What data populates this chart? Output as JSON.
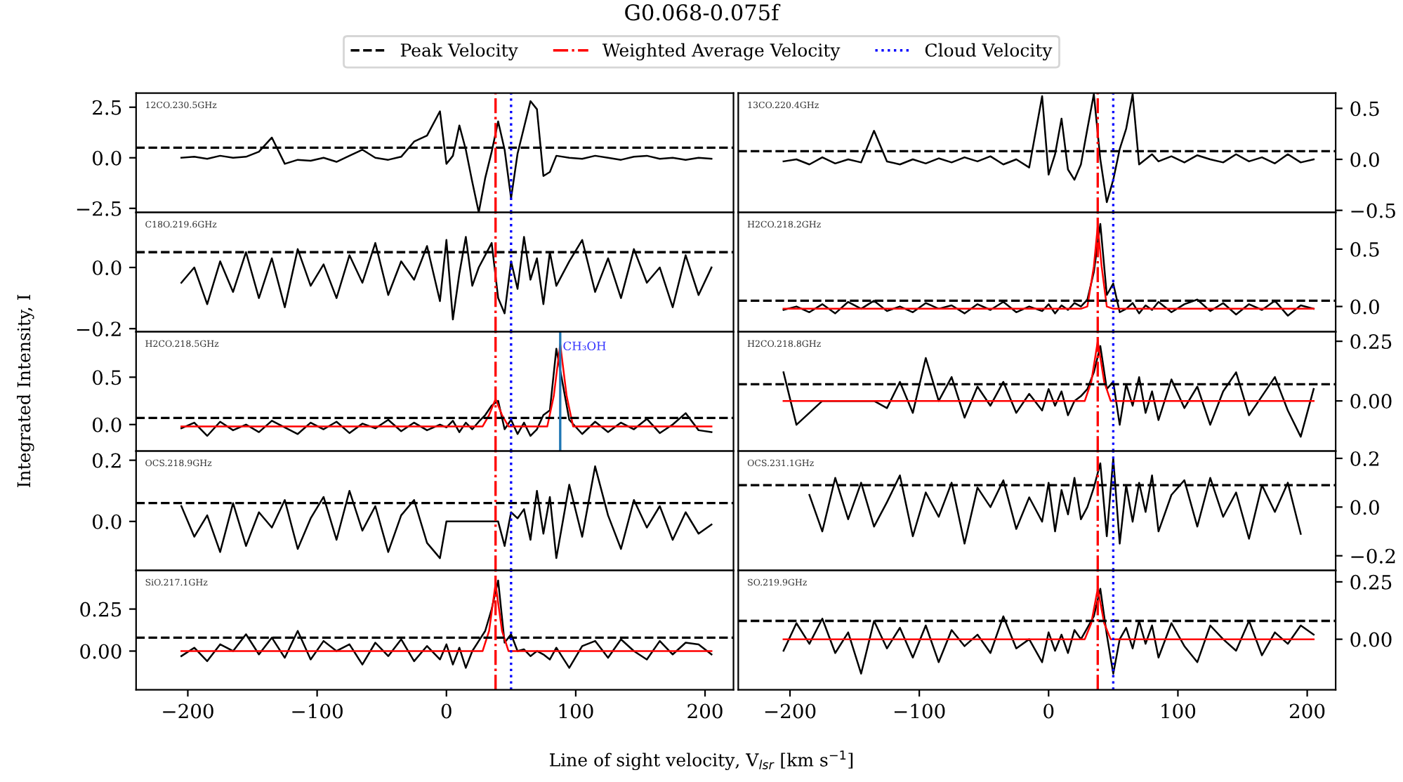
{
  "chart_data": [
    {
      "type": "line",
      "title": "G0.068-0.075f",
      "xlabel": "Line of sight velocity, V$_{lsr}$ [km s$^{−1}$]",
      "ylabel": "Integrated Intensity, I",
      "legend": "top",
      "annotations": [
        "12CO.230.5GHz"
      ],
      "tick_labels": "y",
      "xlim": [
        -240,
        222
      ],
      "ylim": [
        -2.7,
        3.2
      ],
      "xticks": [
        {
          "value": -200,
          "label": null
        },
        {
          "value": -100,
          "label": null
        },
        {
          "value": 0,
          "label": null
        },
        {
          "value": 100,
          "label": null
        },
        {
          "value": 200,
          "label": null
        }
      ],
      "yticks": [
        {
          "value": -2.5,
          "label": "−2.5"
        },
        {
          "value": 0.0,
          "label": "0.0"
        },
        {
          "value": 2.5,
          "label": "2.5"
        }
      ],
      "x": [
        -205,
        -195,
        -185,
        -175,
        -165,
        -155,
        -145,
        -135,
        -125,
        -115,
        -105,
        -95,
        -85,
        -75,
        -65,
        -55,
        -45,
        -35,
        -25,
        -15,
        -5,
        0,
        5,
        10,
        15,
        20,
        25,
        30,
        35,
        40,
        45,
        50,
        55,
        60,
        65,
        70,
        75,
        80,
        85,
        95,
        105,
        115,
        125,
        135,
        145,
        155,
        165,
        175,
        185,
        195,
        205
      ],
      "series": [
        {
          "color": "#000000",
          "values": [
            0.0,
            0.05,
            -0.05,
            0.1,
            0.0,
            0.05,
            0.3,
            1.0,
            -0.3,
            -0.1,
            -0.15,
            0.0,
            -0.2,
            0.1,
            0.4,
            0.0,
            -0.1,
            0.05,
            0.8,
            1.1,
            2.3,
            -0.3,
            0.1,
            1.6,
            0.4,
            -1.2,
            -2.7,
            -1.0,
            0.3,
            1.8,
            0.4,
            -2.0,
            0.2,
            1.5,
            2.8,
            2.4,
            -0.9,
            -0.7,
            0.1,
            0.0,
            -0.05,
            0.1,
            0.0,
            -0.1,
            0.05,
            0.1,
            -0.05,
            0.0,
            -0.1,
            0.0,
            -0.05
          ]
        }
      ],
      "ref_lines": [
        {
          "axis": "y",
          "value": 0.5,
          "label": "Peak Velocity",
          "color": "#000000",
          "line_style": "dashed"
        },
        {
          "axis": "x",
          "value": 38,
          "label": "Weighted Average Velocity",
          "color": "#ff0000",
          "line_style": "dashdot"
        },
        {
          "axis": "x",
          "value": 50,
          "label": "Cloud Velocity",
          "color": "#0000ff",
          "line_style": "dotted"
        }
      ]
    },
    {
      "type": "line",
      "annotations": [
        "13CO.220.4GHz"
      ],
      "tick_labels": "y",
      "xlim": [
        -240,
        222
      ],
      "ylim": [
        -0.52,
        0.65
      ],
      "xticks": [
        {
          "value": -200,
          "label": null
        },
        {
          "value": -100,
          "label": null
        },
        {
          "value": 0,
          "label": null
        },
        {
          "value": 100,
          "label": null
        },
        {
          "value": 200,
          "label": null
        }
      ],
      "yticks": [
        {
          "value": -0.5,
          "label": "−0.5"
        },
        {
          "value": 0.0,
          "label": "0.0"
        },
        {
          "value": 0.5,
          "label": "0.5"
        }
      ],
      "x": [
        -205,
        -195,
        -185,
        -175,
        -165,
        -155,
        -145,
        -135,
        -125,
        -115,
        -105,
        -95,
        -85,
        -75,
        -65,
        -55,
        -45,
        -35,
        -25,
        -15,
        -5,
        0,
        5,
        10,
        15,
        20,
        25,
        30,
        35,
        40,
        45,
        50,
        55,
        60,
        65,
        70,
        75,
        80,
        85,
        95,
        105,
        115,
        125,
        135,
        145,
        155,
        165,
        175,
        185,
        195,
        205
      ],
      "series": [
        {
          "color": "#000000",
          "values": [
            -0.02,
            0.0,
            -0.05,
            0.02,
            -0.04,
            0.0,
            -0.03,
            0.28,
            -0.02,
            -0.05,
            0.0,
            -0.04,
            0.01,
            -0.03,
            0.02,
            -0.02,
            0.03,
            -0.05,
            0.0,
            -0.08,
            0.62,
            -0.15,
            0.05,
            0.4,
            -0.1,
            -0.2,
            -0.05,
            0.3,
            0.64,
            0.0,
            -0.42,
            -0.2,
            0.1,
            0.3,
            0.64,
            -0.05,
            0.0,
            0.05,
            -0.02,
            0.03,
            -0.03,
            0.04,
            0.0,
            -0.03,
            0.05,
            -0.02,
            0.02,
            -0.04,
            0.05,
            -0.03,
            0.0
          ]
        }
      ],
      "ref_lines": [
        {
          "axis": "y",
          "value": 0.08,
          "color": "#000000",
          "line_style": "dashed"
        },
        {
          "axis": "x",
          "value": 38,
          "color": "#ff0000",
          "line_style": "dashdot"
        },
        {
          "axis": "x",
          "value": 50,
          "color": "#0000ff",
          "line_style": "dotted"
        }
      ]
    },
    {
      "type": "line",
      "annotations": [
        "C18O.219.6GHz"
      ],
      "tick_labels": "y",
      "xlim": [
        -240,
        222
      ],
      "ylim": [
        -0.21,
        0.18
      ],
      "xticks": [
        {
          "value": -200,
          "label": null
        },
        {
          "value": -100,
          "label": null
        },
        {
          "value": 0,
          "label": null
        },
        {
          "value": 100,
          "label": null
        },
        {
          "value": 200,
          "label": null
        }
      ],
      "yticks": [
        {
          "value": -0.2,
          "label": "−0.2"
        },
        {
          "value": 0.0,
          "label": "0.0"
        }
      ],
      "x": [
        -205,
        -195,
        -185,
        -175,
        -165,
        -155,
        -145,
        -135,
        -125,
        -115,
        -105,
        -95,
        -85,
        -75,
        -65,
        -55,
        -45,
        -35,
        -25,
        -15,
        -5,
        0,
        5,
        10,
        15,
        20,
        25,
        30,
        35,
        40,
        45,
        50,
        55,
        60,
        65,
        70,
        75,
        80,
        85,
        95,
        105,
        115,
        125,
        135,
        145,
        155,
        165,
        175,
        185,
        195,
        205
      ],
      "series": [
        {
          "color": "#000000",
          "values": [
            -0.05,
            0.0,
            -0.12,
            0.02,
            -0.08,
            0.05,
            -0.1,
            0.03,
            -0.13,
            0.06,
            -0.06,
            0.01,
            -0.1,
            0.04,
            -0.05,
            0.08,
            -0.09,
            0.02,
            -0.04,
            0.07,
            -0.11,
            0.09,
            -0.17,
            -0.02,
            0.1,
            -0.06,
            0.0,
            0.04,
            0.08,
            -0.1,
            -0.15,
            0.02,
            -0.07,
            0.1,
            -0.04,
            0.03,
            -0.12,
            0.05,
            -0.06,
            0.02,
            0.09,
            -0.08,
            0.03,
            -0.1,
            0.06,
            -0.05,
            0.0,
            -0.13,
            0.04,
            -0.09,
            0.0
          ]
        }
      ],
      "ref_lines": [
        {
          "axis": "y",
          "value": 0.05,
          "color": "#000000",
          "line_style": "dashed"
        },
        {
          "axis": "x",
          "value": 38,
          "color": "#ff0000",
          "line_style": "dashdot"
        },
        {
          "axis": "x",
          "value": 50,
          "color": "#0000ff",
          "line_style": "dotted"
        }
      ]
    },
    {
      "type": "line",
      "annotations": [
        "H2CO.218.2GHz"
      ],
      "tick_labels": "y",
      "xlim": [
        -240,
        222
      ],
      "ylim": [
        -0.22,
        0.82
      ],
      "xticks": [
        {
          "value": -200,
          "label": null
        },
        {
          "value": -100,
          "label": null
        },
        {
          "value": 0,
          "label": null
        },
        {
          "value": 100,
          "label": null
        },
        {
          "value": 200,
          "label": null
        }
      ],
      "yticks": [
        {
          "value": 0.0,
          "label": "0.0"
        },
        {
          "value": 0.5,
          "label": "0.5"
        }
      ],
      "x": [
        -205,
        -195,
        -185,
        -175,
        -165,
        -155,
        -145,
        -135,
        -125,
        -115,
        -105,
        -95,
        -85,
        -75,
        -65,
        -55,
        -45,
        -35,
        -25,
        -15,
        -5,
        0,
        5,
        10,
        15,
        20,
        25,
        30,
        35,
        40,
        45,
        50,
        55,
        60,
        65,
        70,
        75,
        80,
        85,
        95,
        105,
        115,
        125,
        135,
        145,
        155,
        165,
        175,
        185,
        195,
        205
      ],
      "series": [
        {
          "color": "#000000",
          "values": [
            -0.03,
            0.0,
            -0.05,
            0.02,
            -0.06,
            0.04,
            -0.02,
            0.05,
            -0.04,
            0.0,
            -0.05,
            0.03,
            -0.02,
            0.01,
            -0.06,
            0.02,
            -0.03,
            0.04,
            -0.05,
            0.0,
            -0.04,
            0.02,
            -0.06,
            0.01,
            -0.03,
            0.03,
            0.0,
            0.06,
            0.3,
            0.72,
            0.1,
            0.2,
            -0.05,
            -0.02,
            0.03,
            -0.06,
            0.01,
            -0.03,
            0.04,
            -0.05,
            0.02,
            0.06,
            -0.04,
            0.03,
            -0.07,
            0.02,
            -0.03,
            0.05,
            -0.08,
            0.01,
            -0.02
          ]
        },
        {
          "type": "line",
          "color": "#ff0000",
          "x": [
            -205,
            25,
            30,
            35,
            38,
            41,
            45,
            50,
            205
          ],
          "values": [
            -0.02,
            -0.02,
            0.0,
            0.35,
            0.7,
            0.35,
            0.0,
            -0.02,
            -0.02
          ]
        }
      ],
      "ref_lines": [
        {
          "axis": "y",
          "value": 0.05,
          "color": "#000000",
          "line_style": "dashed"
        },
        {
          "axis": "x",
          "value": 38,
          "color": "#ff0000",
          "line_style": "dashdot"
        },
        {
          "axis": "x",
          "value": 50,
          "color": "#0000ff",
          "line_style": "dotted"
        }
      ]
    },
    {
      "type": "line",
      "annotations": [
        "H2CO.218.5GHz"
      ],
      "tick_labels": "y",
      "xlim": [
        -240,
        222
      ],
      "ylim": [
        -0.28,
        0.98
      ],
      "xticks": [
        {
          "value": -200,
          "label": null
        },
        {
          "value": -100,
          "label": null
        },
        {
          "value": 0,
          "label": null
        },
        {
          "value": 100,
          "label": null
        },
        {
          "value": 200,
          "label": null
        }
      ],
      "yticks": [
        {
          "value": 0.0,
          "label": "0.0"
        },
        {
          "value": 0.5,
          "label": "0.5"
        }
      ],
      "x": [
        -205,
        -195,
        -185,
        -175,
        -165,
        -155,
        -145,
        -135,
        -125,
        -115,
        -105,
        -95,
        -85,
        -75,
        -65,
        -55,
        -45,
        -35,
        -25,
        -15,
        -5,
        0,
        5,
        10,
        15,
        20,
        25,
        30,
        35,
        40,
        45,
        50,
        55,
        60,
        65,
        70,
        75,
        80,
        85,
        95,
        105,
        115,
        125,
        135,
        145,
        155,
        165,
        175,
        185,
        195,
        205
      ],
      "series": [
        {
          "color": "#000000",
          "values": [
            -0.04,
            0.02,
            -0.12,
            0.03,
            -0.06,
            0.0,
            -0.08,
            0.04,
            -0.03,
            -0.1,
            0.02,
            -0.05,
            0.03,
            -0.09,
            0.01,
            -0.04,
            0.05,
            -0.07,
            0.02,
            -0.06,
            0.0,
            -0.03,
            0.04,
            -0.08,
            0.02,
            -0.05,
            0.03,
            0.1,
            0.2,
            0.25,
            -0.05,
            0.05,
            -0.1,
            0.02,
            -0.12,
            -0.05,
            0.1,
            0.15,
            0.8,
            0.05,
            -0.1,
            0.03,
            -0.08,
            0.02,
            -0.05,
            0.06,
            -0.09,
            0.0,
            0.12,
            -0.06,
            -0.08
          ]
        },
        {
          "type": "line",
          "color": "#ff0000",
          "x": [
            -205,
            28,
            33,
            38,
            43,
            48,
            78,
            83,
            88,
            93,
            98,
            205
          ],
          "values": [
            -0.02,
            -0.02,
            0.1,
            0.27,
            0.1,
            -0.02,
            -0.02,
            0.3,
            0.85,
            0.3,
            -0.02,
            -0.02
          ]
        }
      ],
      "ref_lines": [
        {
          "axis": "y",
          "value": 0.07,
          "color": "#000000",
          "line_style": "dashed"
        },
        {
          "axis": "x",
          "value": 38,
          "color": "#ff0000",
          "line_style": "dashdot"
        },
        {
          "axis": "x",
          "value": 50,
          "color": "#0000ff",
          "line_style": "dotted"
        },
        {
          "axis": "x",
          "value": 88,
          "label": "CH₃OH",
          "color": "#1f77b4",
          "line_style": "solid"
        }
      ]
    },
    {
      "type": "line",
      "annotations": [
        "H2CO.218.8GHz"
      ],
      "tick_labels": "y",
      "xlim": [
        -240,
        222
      ],
      "ylim": [
        -0.21,
        0.29
      ],
      "xticks": [
        {
          "value": -200,
          "label": null
        },
        {
          "value": -100,
          "label": null
        },
        {
          "value": 0,
          "label": null
        },
        {
          "value": 100,
          "label": null
        },
        {
          "value": 200,
          "label": null
        }
      ],
      "yticks": [
        {
          "value": 0.0,
          "label": "0.00"
        },
        {
          "value": 0.25,
          "label": "0.25"
        }
      ],
      "x": [
        -205,
        -195,
        -185,
        -175,
        -165,
        -155,
        -145,
        -135,
        -125,
        -115,
        -105,
        -95,
        -85,
        -75,
        -65,
        -55,
        -45,
        -35,
        -25,
        -15,
        -5,
        0,
        5,
        10,
        15,
        20,
        25,
        30,
        35,
        40,
        45,
        50,
        55,
        60,
        65,
        70,
        75,
        80,
        85,
        95,
        105,
        115,
        125,
        135,
        145,
        155,
        165,
        175,
        185,
        195,
        205
      ],
      "series": [
        {
          "color": "#000000",
          "values": [
            0.12,
            -0.1,
            -0.05,
            0.0,
            0.0,
            0.0,
            0.0,
            0.0,
            -0.03,
            0.08,
            -0.05,
            0.18,
            0.0,
            0.1,
            -0.07,
            0.06,
            -0.02,
            0.08,
            -0.05,
            0.03,
            -0.04,
            0.05,
            -0.02,
            0.04,
            -0.06,
            0.0,
            0.02,
            0.05,
            0.12,
            0.23,
            0.05,
            0.08,
            -0.1,
            0.07,
            -0.02,
            0.1,
            -0.05,
            0.04,
            -0.08,
            0.09,
            -0.03,
            0.06,
            -0.1,
            0.04,
            0.12,
            -0.06,
            0.02,
            0.1,
            -0.04,
            -0.15,
            0.05
          ]
        },
        {
          "type": "line",
          "color": "#ff0000",
          "x": [
            -205,
            28,
            33,
            38,
            43,
            48,
            205
          ],
          "values": [
            0.0,
            0.0,
            0.08,
            0.25,
            0.08,
            0.0,
            0.0
          ]
        }
      ],
      "ref_lines": [
        {
          "axis": "y",
          "value": 0.07,
          "color": "#000000",
          "line_style": "dashed"
        },
        {
          "axis": "x",
          "value": 38,
          "color": "#ff0000",
          "line_style": "dashdot"
        },
        {
          "axis": "x",
          "value": 50,
          "color": "#0000ff",
          "line_style": "dotted"
        }
      ]
    },
    {
      "type": "line",
      "annotations": [
        "OCS.218.9GHz"
      ],
      "tick_labels": "y",
      "xlim": [
        -240,
        222
      ],
      "ylim": [
        -0.16,
        0.23
      ],
      "xticks": [
        {
          "value": -200,
          "label": null
        },
        {
          "value": -100,
          "label": null
        },
        {
          "value": 0,
          "label": null
        },
        {
          "value": 100,
          "label": null
        },
        {
          "value": 200,
          "label": null
        }
      ],
      "yticks": [
        {
          "value": 0.0,
          "label": "0.0"
        },
        {
          "value": 0.2,
          "label": "0.2"
        }
      ],
      "x": [
        -205,
        -195,
        -185,
        -175,
        -165,
        -155,
        -145,
        -135,
        -125,
        -115,
        -105,
        -95,
        -85,
        -75,
        -65,
        -55,
        -45,
        -35,
        -25,
        -15,
        -5,
        0,
        5,
        10,
        15,
        20,
        25,
        30,
        35,
        40,
        45,
        50,
        55,
        60,
        65,
        70,
        75,
        80,
        85,
        95,
        105,
        115,
        125,
        135,
        145,
        155,
        165,
        175,
        185,
        195,
        205
      ],
      "series": [
        {
          "color": "#000000",
          "values": [
            0.05,
            -0.05,
            0.02,
            -0.1,
            0.06,
            -0.08,
            0.03,
            -0.02,
            0.07,
            -0.09,
            0.01,
            0.08,
            -0.06,
            0.1,
            -0.03,
            0.05,
            -0.1,
            0.02,
            0.07,
            -0.07,
            -0.12,
            0.0,
            0.0,
            0.0,
            0.0,
            0.0,
            0.0,
            0.0,
            0.0,
            0.0,
            -0.08,
            0.03,
            0.01,
            0.04,
            -0.06,
            0.1,
            -0.04,
            0.08,
            -0.12,
            0.12,
            -0.05,
            0.18,
            0.02,
            -0.09,
            0.07,
            -0.02,
            0.05,
            -0.06,
            0.03,
            -0.04,
            -0.01
          ]
        }
      ],
      "ref_lines": [
        {
          "axis": "y",
          "value": 0.06,
          "color": "#000000",
          "line_style": "dashed"
        },
        {
          "axis": "x",
          "value": 38,
          "color": "#ff0000",
          "line_style": "dashdot"
        },
        {
          "axis": "x",
          "value": 50,
          "color": "#0000ff",
          "line_style": "dotted"
        }
      ]
    },
    {
      "type": "line",
      "annotations": [
        "OCS.231.1GHz"
      ],
      "tick_labels": "y",
      "xlim": [
        -240,
        222
      ],
      "ylim": [
        -0.26,
        0.23
      ],
      "xticks": [
        {
          "value": -200,
          "label": null
        },
        {
          "value": -100,
          "label": null
        },
        {
          "value": 0,
          "label": null
        },
        {
          "value": 100,
          "label": null
        },
        {
          "value": 200,
          "label": null
        }
      ],
      "yticks": [
        {
          "value": -0.2,
          "label": "−0.2"
        },
        {
          "value": 0.0,
          "label": "0.0"
        },
        {
          "value": 0.2,
          "label": "0.2"
        }
      ],
      "series": [
        {
          "color": "#000000",
          "x": [
            -185,
            -175,
            -165,
            -155,
            -145,
            -135,
            -125,
            -115,
            -105,
            -95,
            -85,
            -75,
            -65,
            -55,
            -45,
            -35,
            -25,
            -15,
            -5,
            0,
            5,
            10,
            15,
            20,
            25,
            30,
            35,
            40,
            45,
            50,
            55,
            60,
            65,
            70,
            75,
            80,
            85,
            95,
            105,
            115,
            125,
            135,
            145,
            155,
            165,
            175,
            185,
            195
          ],
          "values": [
            0.05,
            -0.1,
            0.12,
            -0.05,
            0.1,
            -0.08,
            0.02,
            0.13,
            -0.12,
            0.06,
            -0.04,
            0.1,
            -0.15,
            0.08,
            0.0,
            0.11,
            -0.09,
            0.04,
            -0.06,
            0.1,
            -0.1,
            0.07,
            -0.03,
            0.12,
            -0.05,
            0.0,
            0.08,
            0.18,
            -0.12,
            0.2,
            -0.15,
            0.09,
            -0.06,
            0.1,
            -0.02,
            0.13,
            -0.1,
            0.05,
            0.11,
            -0.08,
            0.12,
            -0.04,
            0.06,
            -0.13,
            0.09,
            -0.02,
            0.1,
            -0.11
          ]
        }
      ],
      "ref_lines": [
        {
          "axis": "y",
          "value": 0.09,
          "color": "#000000",
          "line_style": "dashed"
        },
        {
          "axis": "x",
          "value": 38,
          "color": "#ff0000",
          "line_style": "dashdot"
        },
        {
          "axis": "x",
          "value": 50,
          "color": "#0000ff",
          "line_style": "dotted"
        }
      ]
    },
    {
      "type": "line",
      "annotations": [
        "SiO.217.1GHz"
      ],
      "xlim": [
        -240,
        222
      ],
      "ylim": [
        -0.23,
        0.48
      ],
      "xticks": [
        {
          "value": -200,
          "label": "−200"
        },
        {
          "value": -100,
          "label": "−100"
        },
        {
          "value": 0,
          "label": "0"
        },
        {
          "value": 100,
          "label": "100"
        },
        {
          "value": 200,
          "label": "200"
        }
      ],
      "yticks": [
        {
          "value": 0.0,
          "label": "0.00"
        },
        {
          "value": 0.25,
          "label": "0.25"
        }
      ],
      "x": [
        -205,
        -195,
        -185,
        -175,
        -165,
        -155,
        -145,
        -135,
        -125,
        -115,
        -105,
        -95,
        -85,
        -75,
        -65,
        -55,
        -45,
        -35,
        -25,
        -15,
        -5,
        0,
        5,
        10,
        15,
        20,
        25,
        30,
        35,
        40,
        45,
        50,
        55,
        60,
        65,
        70,
        75,
        80,
        85,
        95,
        105,
        115,
        125,
        135,
        145,
        155,
        165,
        175,
        185,
        195,
        205
      ],
      "series": [
        {
          "color": "#000000",
          "values": [
            -0.03,
            0.02,
            -0.06,
            0.04,
            0.0,
            0.1,
            -0.02,
            0.08,
            -0.04,
            0.12,
            -0.05,
            0.06,
            0.0,
            0.04,
            -0.08,
            0.05,
            -0.03,
            0.07,
            -0.06,
            0.03,
            -0.05,
            0.04,
            -0.08,
            0.02,
            -0.1,
            0.0,
            0.06,
            0.12,
            0.25,
            0.42,
            0.05,
            0.1,
            0.0,
            0.01,
            -0.03,
            0.0,
            -0.02,
            -0.05,
            0.02,
            -0.1,
            0.03,
            0.06,
            -0.04,
            0.07,
            0.0,
            -0.05,
            0.06,
            -0.02,
            0.05,
            0.04,
            -0.02
          ]
        },
        {
          "type": "line",
          "color": "#ff0000",
          "x": [
            -205,
            28,
            33,
            38,
            43,
            48,
            205
          ],
          "values": [
            0.0,
            0.0,
            0.12,
            0.4,
            0.12,
            0.0,
            0.0
          ]
        }
      ],
      "ref_lines": [
        {
          "axis": "y",
          "value": 0.08,
          "color": "#000000",
          "line_style": "dashed"
        },
        {
          "axis": "x",
          "value": 38,
          "color": "#ff0000",
          "line_style": "dashdot"
        },
        {
          "axis": "x",
          "value": 50,
          "color": "#0000ff",
          "line_style": "dotted"
        }
      ]
    },
    {
      "type": "line",
      "annotations": [
        "SO.219.9GHz"
      ],
      "xlim": [
        -240,
        222
      ],
      "ylim": [
        -0.22,
        0.3
      ],
      "xticks": [
        {
          "value": -200,
          "label": "−200"
        },
        {
          "value": -100,
          "label": "−100"
        },
        {
          "value": 0,
          "label": "0"
        },
        {
          "value": 100,
          "label": "100"
        },
        {
          "value": 200,
          "label": "200"
        }
      ],
      "yticks": [
        {
          "value": 0.0,
          "label": "0.00"
        },
        {
          "value": 0.25,
          "label": "0.25"
        }
      ],
      "x": [
        -205,
        -195,
        -185,
        -175,
        -165,
        -155,
        -145,
        -135,
        -125,
        -115,
        -105,
        -95,
        -85,
        -75,
        -65,
        -55,
        -45,
        -35,
        -25,
        -15,
        -5,
        0,
        5,
        10,
        15,
        20,
        25,
        30,
        35,
        40,
        45,
        50,
        55,
        60,
        65,
        70,
        75,
        80,
        85,
        95,
        105,
        115,
        125,
        135,
        145,
        155,
        165,
        175,
        185,
        195,
        205
      ],
      "series": [
        {
          "color": "#000000",
          "values": [
            -0.05,
            0.07,
            -0.02,
            0.09,
            -0.06,
            0.03,
            -0.15,
            0.08,
            -0.04,
            0.05,
            -0.08,
            0.06,
            -0.1,
            0.04,
            -0.03,
            0.02,
            -0.06,
            0.1,
            -0.04,
            0.0,
            -0.1,
            0.03,
            -0.05,
            0.02,
            -0.06,
            0.04,
            0.0,
            0.05,
            0.1,
            0.22,
            0.02,
            -0.15,
            0.0,
            0.05,
            -0.04,
            0.08,
            -0.02,
            0.06,
            -0.08,
            0.07,
            -0.03,
            -0.1,
            0.06,
            0.0,
            -0.05,
            0.08,
            -0.07,
            0.03,
            -0.02,
            0.06,
            0.02
          ]
        },
        {
          "type": "line",
          "color": "#ff0000",
          "x": [
            -205,
            28,
            33,
            38,
            43,
            48,
            205
          ],
          "values": [
            0.0,
            0.0,
            0.07,
            0.22,
            0.07,
            0.0,
            0.0
          ]
        }
      ],
      "ref_lines": [
        {
          "axis": "y",
          "value": 0.08,
          "color": "#000000",
          "line_style": "dashed"
        },
        {
          "axis": "x",
          "value": 38,
          "color": "#ff0000",
          "line_style": "dashdot"
        },
        {
          "axis": "x",
          "value": 50,
          "color": "#0000ff",
          "line_style": "dotted"
        }
      ]
    }
  ]
}
